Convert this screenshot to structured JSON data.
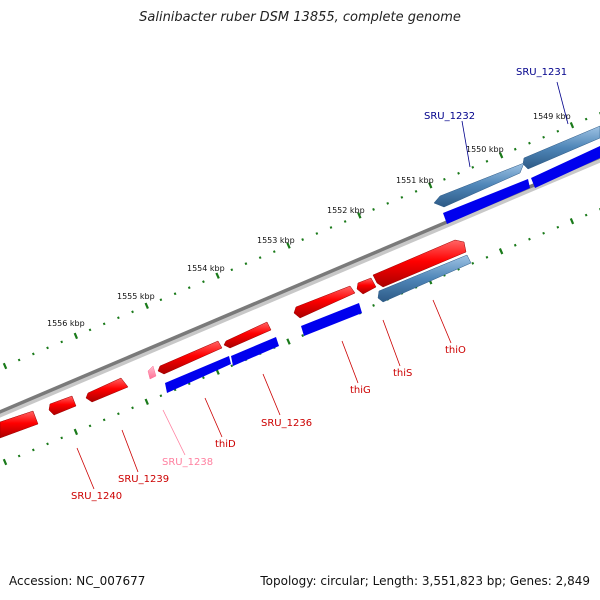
{
  "title": "Salinibacter ruber DSM 13855, complete genome",
  "accession": "Accession: NC_007677",
  "summary": {
    "topology": "circular",
    "length": "3,551,823 bp",
    "genes": "2,849",
    "text": "Topology: circular; Length: 3,551,823 bp; Genes: 2,849"
  },
  "kbp_labels": [
    "1549 kbp",
    "1550 kbp",
    "1551 kbp",
    "1552 kbp",
    "1553 kbp",
    "1554 kbp",
    "1555 kbp",
    "1556 kbp"
  ],
  "genes": [
    {
      "name": "SRU_1231",
      "color": "#00008b"
    },
    {
      "name": "SRU_1232",
      "color": "#00008b"
    },
    {
      "name": "thiO",
      "color": "#cc0000"
    },
    {
      "name": "thiS",
      "color": "#cc0000"
    },
    {
      "name": "thiG",
      "color": "#cc0000"
    },
    {
      "name": "SRU_1236",
      "color": "#cc0000"
    },
    {
      "name": "thiD",
      "color": "#cc0000"
    },
    {
      "name": "SRU_1238",
      "color": "#ff80a0"
    },
    {
      "name": "SRU_1239",
      "color": "#cc0000"
    },
    {
      "name": "SRU_1240",
      "color": "#cc0000"
    }
  ],
  "colors": {
    "backbone": "#7a7a7a",
    "tick": "#1a7a1a",
    "forward_gene": "#ff1a1a",
    "cds": "#0000ee",
    "steelblue_gene": "#4682b4",
    "pseudo_gene": "#ff80a0"
  }
}
